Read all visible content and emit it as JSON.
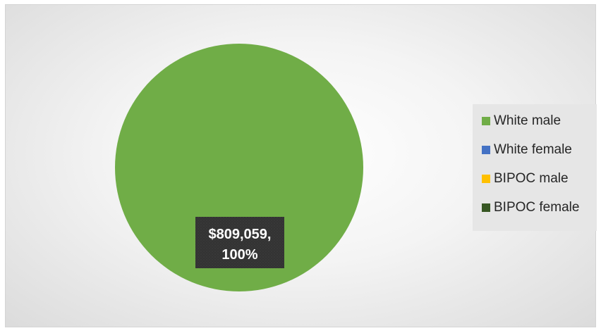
{
  "chart_data": {
    "type": "pie",
    "categories": [
      "White male",
      "White female",
      "BIPOC male",
      "BIPOC female"
    ],
    "values": [
      809059,
      0,
      0,
      0
    ],
    "colors": [
      "#70ad47",
      "#4472c4",
      "#ffc000",
      "#375623"
    ],
    "title": "",
    "data_labels": [
      {
        "category": "White male",
        "value_text": "$809,059,",
        "percent_text": "100%"
      }
    ],
    "legend_position": "right"
  }
}
